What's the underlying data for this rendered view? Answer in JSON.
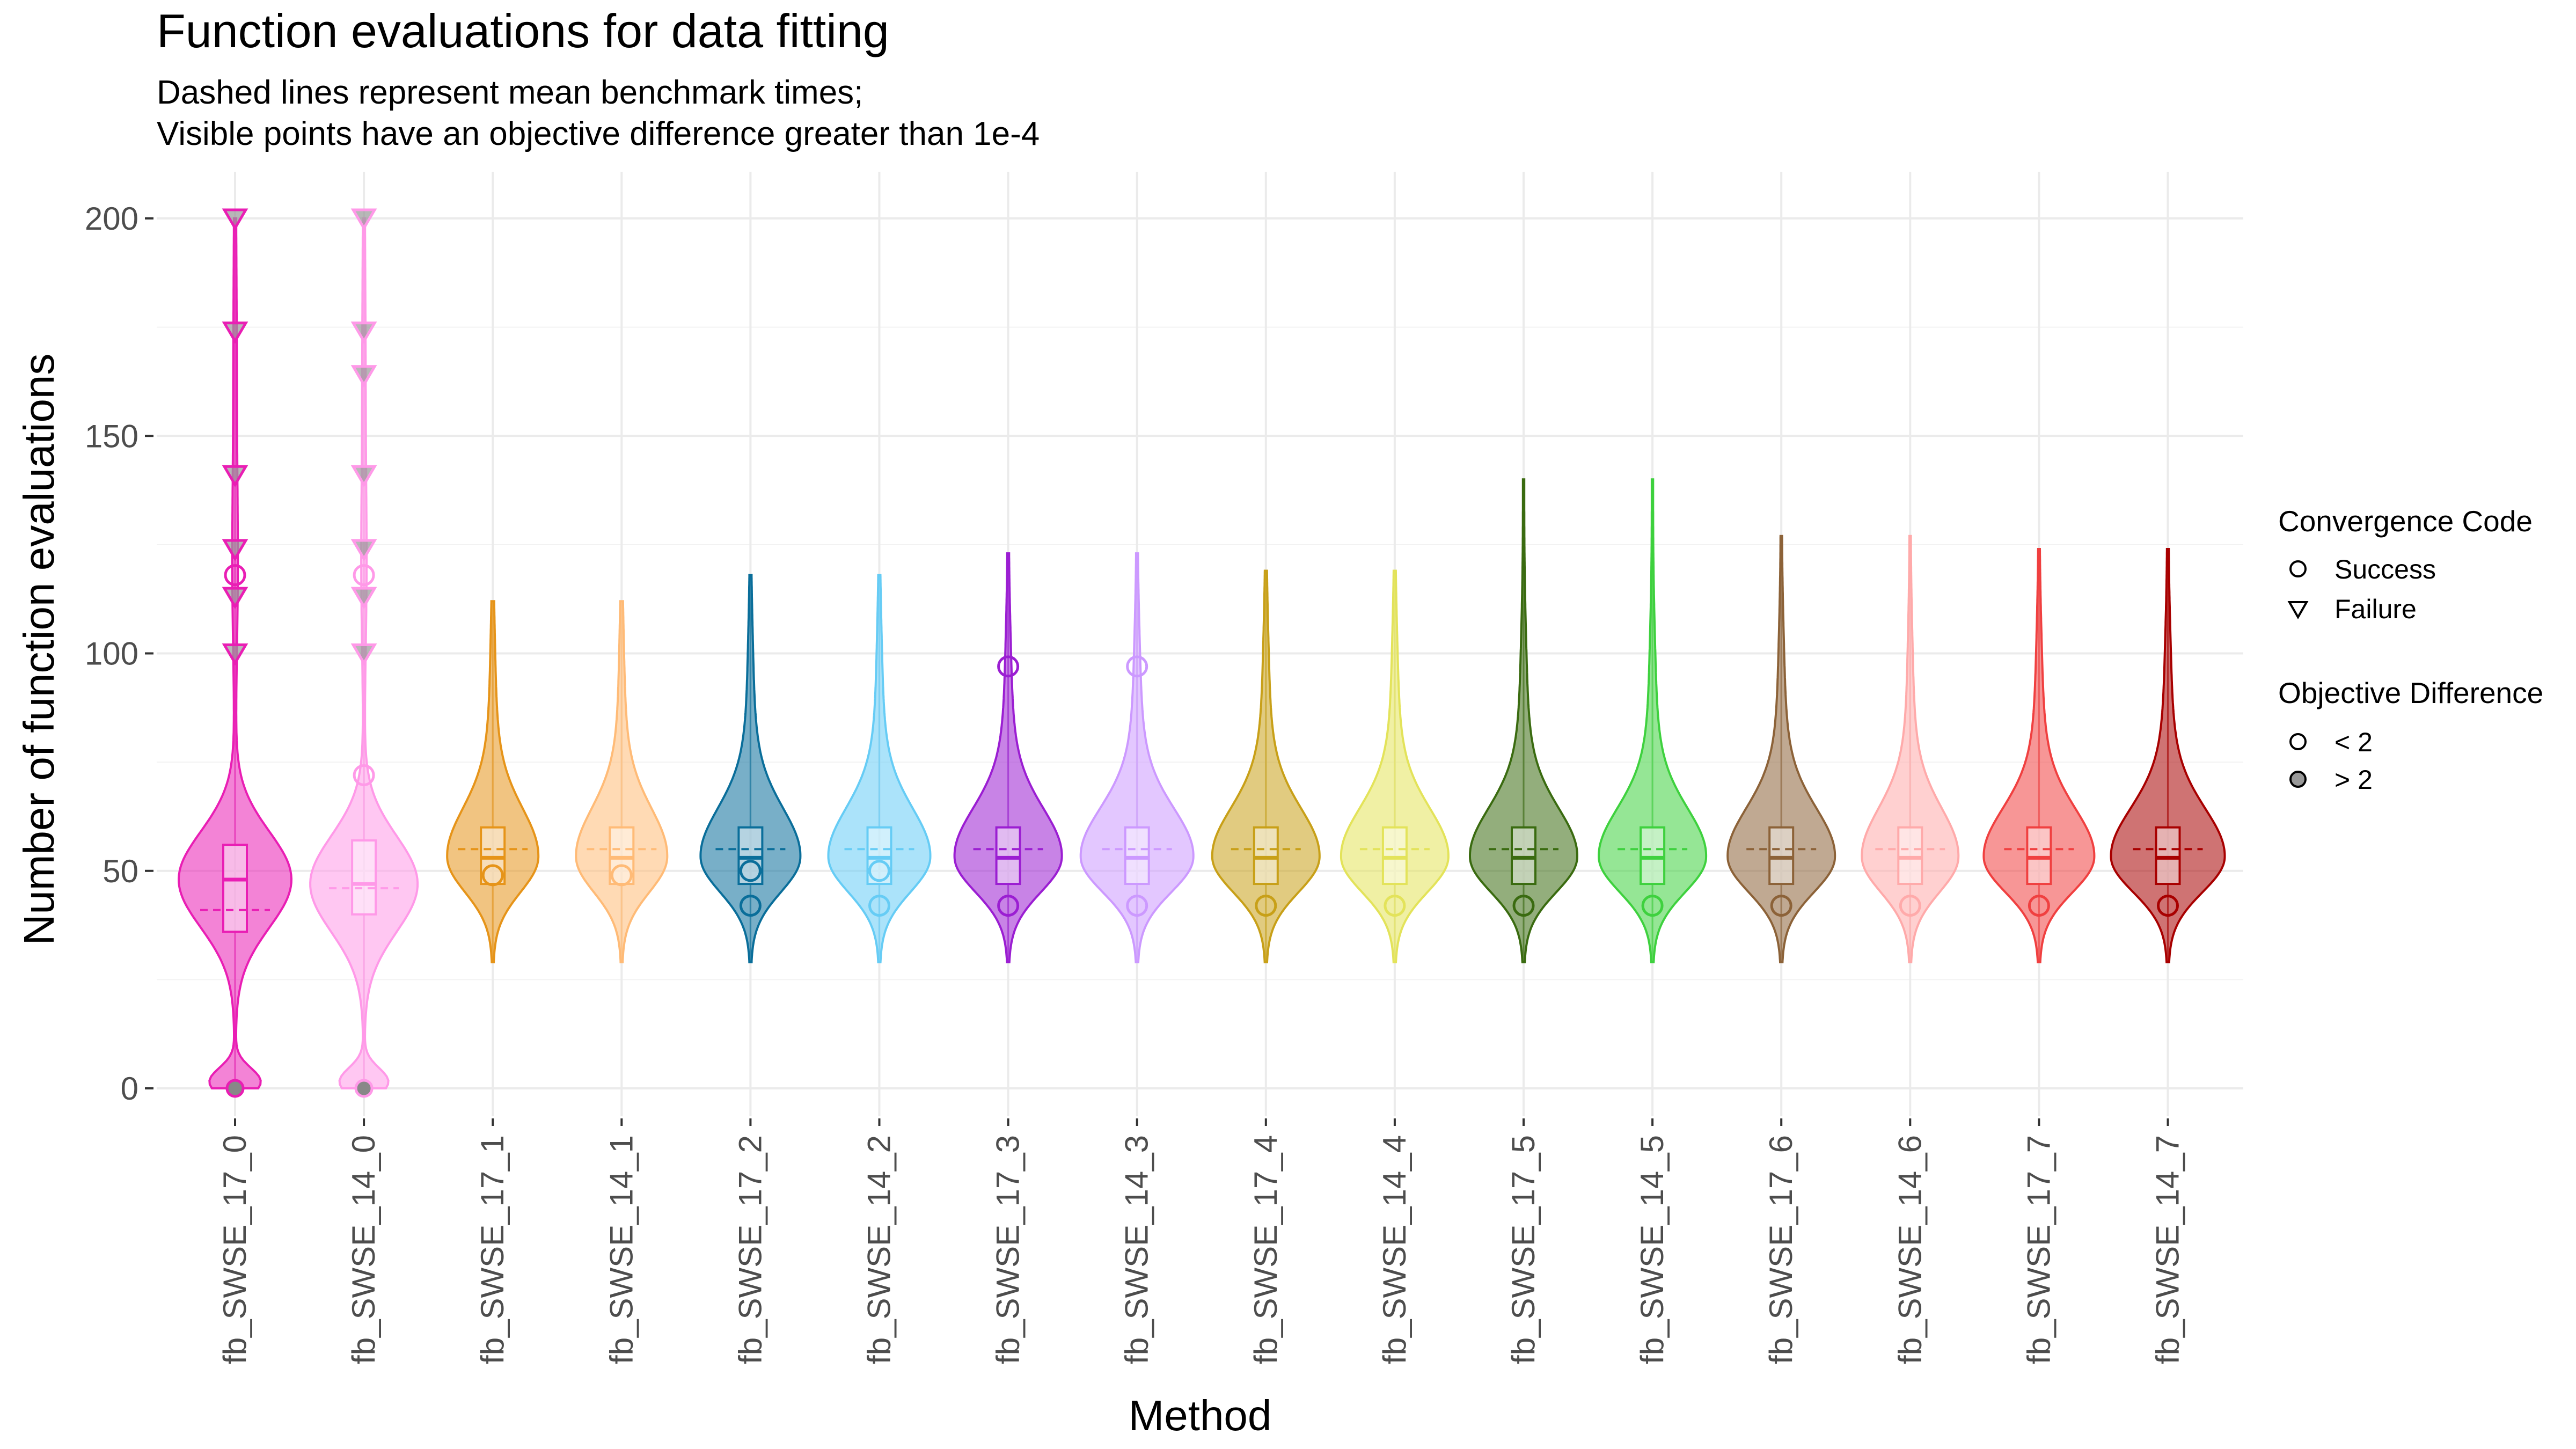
{
  "chart_data": {
    "type": "violin",
    "title": "Function evaluations for data fitting",
    "subtitle_lines": [
      "Dashed lines represent mean benchmark times;",
      "Visible points have an objective difference greater than 1e-4"
    ],
    "xlabel": "Method",
    "ylabel": "Number of function evaluations",
    "ylim": [
      0,
      200
    ],
    "y_ticks": [
      0,
      50,
      100,
      150,
      200
    ],
    "grid": true,
    "categories": [
      "fb_SWSE_17_0",
      "fb_SWSE_14_0",
      "fb_SWSE_17_1",
      "fb_SWSE_14_1",
      "fb_SWSE_17_2",
      "fb_SWSE_14_2",
      "fb_SWSE_17_3",
      "fb_SWSE_14_3",
      "fb_SWSE_17_4",
      "fb_SWSE_14_4",
      "fb_SWSE_17_5",
      "fb_SWSE_14_5",
      "fb_SWSE_17_6",
      "fb_SWSE_14_6",
      "fb_SWSE_17_7",
      "fb_SWSE_14_7"
    ],
    "colors": [
      "#e91eb4",
      "#ff99e8",
      "#e69419",
      "#ffbb77",
      "#0a6e9a",
      "#66ccf5",
      "#9b1ed2",
      "#cc99ff",
      "#c8a018",
      "#e3e35a",
      "#3a6b10",
      "#3ed13e",
      "#8c6238",
      "#ffaaaa",
      "#f04040",
      "#a80000"
    ],
    "series": [
      {
        "category": "fb_SWSE_17_0",
        "min": 0,
        "q1": 36,
        "median": 48,
        "q3": 56,
        "max": 200,
        "mean": 41,
        "success_points": [
          0,
          118
        ],
        "failure_points": [
          100,
          113,
          124,
          141,
          174,
          200
        ],
        "objective_gt2_points": [
          0
        ]
      },
      {
        "category": "fb_SWSE_14_0",
        "min": 0,
        "q1": 40,
        "median": 47,
        "q3": 57,
        "max": 200,
        "mean": 46,
        "success_points": [
          0,
          72,
          118
        ],
        "failure_points": [
          100,
          113,
          124,
          141,
          164,
          174,
          200
        ],
        "objective_gt2_points": [
          0
        ]
      },
      {
        "category": "fb_SWSE_17_1",
        "min": 29,
        "q1": 47,
        "median": 53,
        "q3": 60,
        "max": 112,
        "mean": 55,
        "success_points": [
          49
        ],
        "failure_points": [],
        "objective_gt2_points": []
      },
      {
        "category": "fb_SWSE_14_1",
        "min": 29,
        "q1": 47,
        "median": 53,
        "q3": 60,
        "max": 112,
        "mean": 55,
        "success_points": [
          49
        ],
        "failure_points": [],
        "objective_gt2_points": []
      },
      {
        "category": "fb_SWSE_17_2",
        "min": 29,
        "q1": 47,
        "median": 53,
        "q3": 60,
        "max": 118,
        "mean": 55,
        "success_points": [
          42,
          50
        ],
        "failure_points": [],
        "objective_gt2_points": []
      },
      {
        "category": "fb_SWSE_14_2",
        "min": 29,
        "q1": 47,
        "median": 53,
        "q3": 60,
        "max": 118,
        "mean": 55,
        "success_points": [
          42,
          50
        ],
        "failure_points": [],
        "objective_gt2_points": []
      },
      {
        "category": "fb_SWSE_17_3",
        "min": 29,
        "q1": 47,
        "median": 53,
        "q3": 60,
        "max": 123,
        "mean": 55,
        "success_points": [
          42,
          97
        ],
        "failure_points": [],
        "objective_gt2_points": []
      },
      {
        "category": "fb_SWSE_14_3",
        "min": 29,
        "q1": 47,
        "median": 53,
        "q3": 60,
        "max": 123,
        "mean": 55,
        "success_points": [
          42,
          97
        ],
        "failure_points": [],
        "objective_gt2_points": []
      },
      {
        "category": "fb_SWSE_17_4",
        "min": 29,
        "q1": 47,
        "median": 53,
        "q3": 60,
        "max": 119,
        "mean": 55,
        "success_points": [
          42
        ],
        "failure_points": [],
        "objective_gt2_points": []
      },
      {
        "category": "fb_SWSE_14_4",
        "min": 29,
        "q1": 47,
        "median": 53,
        "q3": 60,
        "max": 119,
        "mean": 55,
        "success_points": [
          42
        ],
        "failure_points": [],
        "objective_gt2_points": []
      },
      {
        "category": "fb_SWSE_17_5",
        "min": 29,
        "q1": 47,
        "median": 53,
        "q3": 60,
        "max": 140,
        "mean": 55,
        "success_points": [
          42
        ],
        "failure_points": [],
        "objective_gt2_points": []
      },
      {
        "category": "fb_SWSE_14_5",
        "min": 29,
        "q1": 47,
        "median": 53,
        "q3": 60,
        "max": 140,
        "mean": 55,
        "success_points": [
          42
        ],
        "failure_points": [],
        "objective_gt2_points": []
      },
      {
        "category": "fb_SWSE_17_6",
        "min": 29,
        "q1": 47,
        "median": 53,
        "q3": 60,
        "max": 127,
        "mean": 55,
        "success_points": [
          42
        ],
        "failure_points": [],
        "objective_gt2_points": []
      },
      {
        "category": "fb_SWSE_14_6",
        "min": 29,
        "q1": 47,
        "median": 53,
        "q3": 60,
        "max": 127,
        "mean": 55,
        "success_points": [
          42
        ],
        "failure_points": [],
        "objective_gt2_points": []
      },
      {
        "category": "fb_SWSE_17_7",
        "min": 29,
        "q1": 47,
        "median": 53,
        "q3": 60,
        "max": 124,
        "mean": 55,
        "success_points": [
          42
        ],
        "failure_points": [],
        "objective_gt2_points": []
      },
      {
        "category": "fb_SWSE_14_7",
        "min": 29,
        "q1": 47,
        "median": 53,
        "q3": 60,
        "max": 124,
        "mean": 55,
        "success_points": [
          42
        ],
        "failure_points": [],
        "objective_gt2_points": []
      }
    ],
    "legend": {
      "placement": "right",
      "convergence": {
        "title": "Convergence Code",
        "items": [
          {
            "label": "Success",
            "shape": "circle"
          },
          {
            "label": "Failure",
            "shape": "triangle-down"
          }
        ]
      },
      "objective": {
        "title": "Objective Difference",
        "items": [
          {
            "label": "< 2",
            "fill": "none"
          },
          {
            "label": "> 2",
            "fill": "#999999"
          }
        ]
      }
    }
  }
}
